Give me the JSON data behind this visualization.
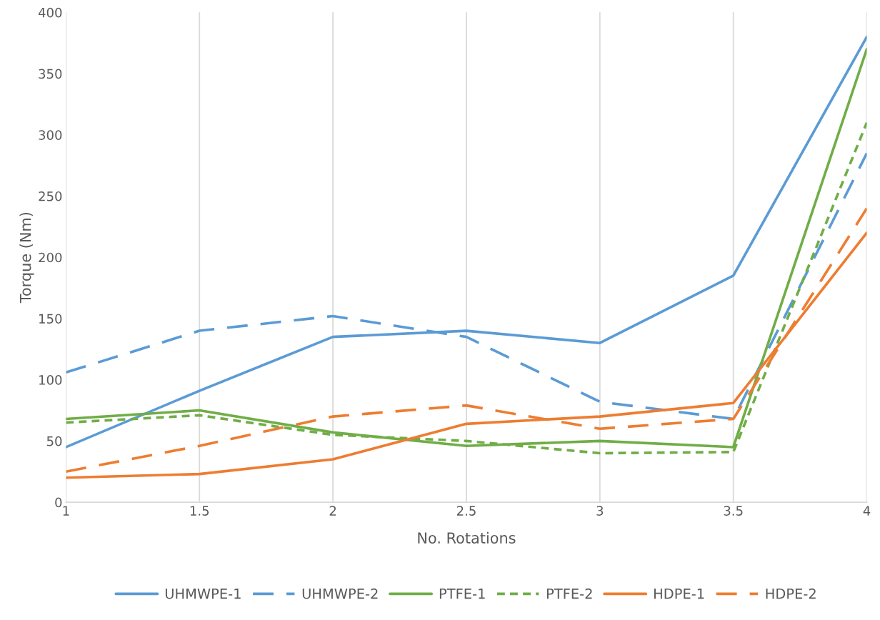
{
  "chart_data": {
    "type": "line",
    "xlabel": "No. Rotations",
    "ylabel": "Torque (Nm)",
    "x": [
      1,
      1.5,
      2,
      2.5,
      3,
      3.5,
      4
    ],
    "xlim": [
      1,
      4
    ],
    "xticks": [
      1,
      1.5,
      2,
      2.5,
      3,
      3.5,
      4
    ],
    "ylim": [
      0,
      400
    ],
    "yticks": [
      0,
      50,
      100,
      150,
      200,
      250,
      300,
      350,
      400
    ],
    "grid": "x",
    "legend": "bottom",
    "marker": "none",
    "series": [
      {
        "name": "UHMWPE-1",
        "color": "#5b9bd5",
        "line_style": "solid",
        "values": [
          45,
          91,
          135,
          140,
          130,
          185,
          380
        ]
      },
      {
        "name": "UHMWPE-2",
        "color": "#5b9bd5",
        "line_style": "dashed",
        "values": [
          106,
          140,
          152,
          135,
          82,
          68,
          285
        ]
      },
      {
        "name": "PTFE-1",
        "color": "#70ad47",
        "line_style": "solid",
        "values": [
          68,
          75,
          57,
          46,
          50,
          45,
          370
        ]
      },
      {
        "name": "PTFE-2",
        "color": "#70ad47",
        "line_style": "dotted",
        "values": [
          65,
          71,
          55,
          50,
          40,
          41,
          310
        ]
      },
      {
        "name": "HDPE-1",
        "color": "#ed7d31",
        "line_style": "solid",
        "values": [
          20,
          23,
          35,
          64,
          70,
          81,
          220
        ]
      },
      {
        "name": "HDPE-2",
        "color": "#ed7d31",
        "line_style": "dashed",
        "values": [
          25,
          46,
          70,
          79,
          60,
          68,
          240
        ]
      }
    ]
  }
}
